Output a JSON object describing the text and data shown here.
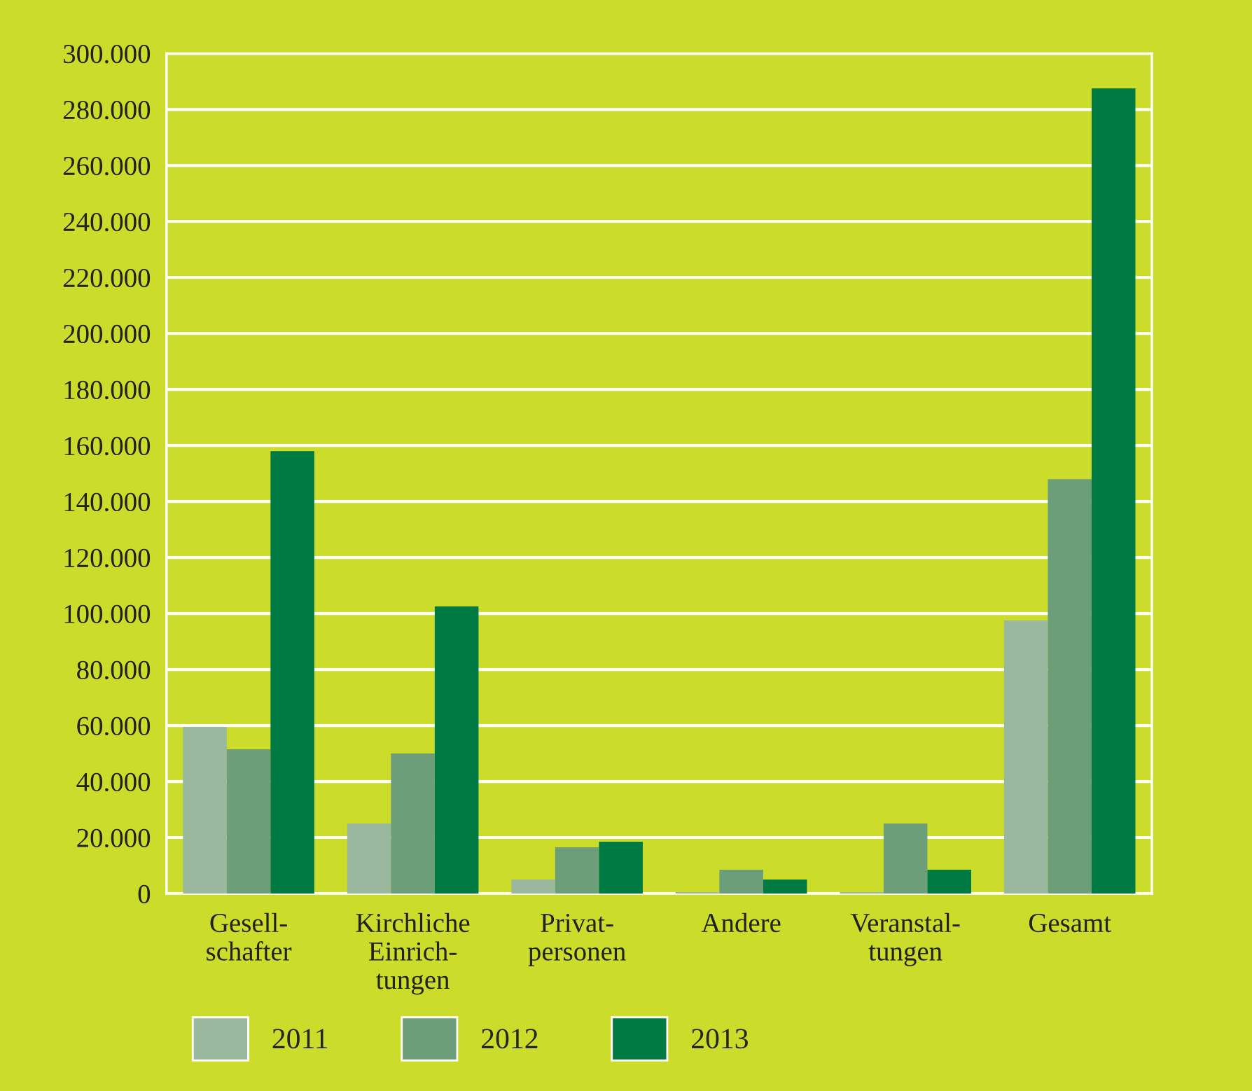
{
  "chart_data": {
    "type": "bar",
    "categories": [
      "Gesell-\nschafter",
      "Kirchliche\nEinrich-\ntungen",
      "Privat-\npersonen",
      "Andere",
      "Veranstal-\ntungen",
      "Gesamt"
    ],
    "series": [
      {
        "name": "2011",
        "color": "#9ab89e",
        "values": [
          59500,
          25000,
          5000,
          500,
          500,
          97500
        ]
      },
      {
        "name": "2012",
        "color": "#6c9e7a",
        "values": [
          51500,
          50000,
          16500,
          8500,
          25000,
          148000
        ]
      },
      {
        "name": "2013",
        "color": "#007a43",
        "values": [
          158000,
          102500,
          18500,
          5000,
          8500,
          287500
        ]
      }
    ],
    "ylim": [
      0,
      300000
    ],
    "yticks": [
      {
        "value": 0,
        "label": "0"
      },
      {
        "value": 20000,
        "label": "20.000"
      },
      {
        "value": 40000,
        "label": "40.000"
      },
      {
        "value": 60000,
        "label": "60.000"
      },
      {
        "value": 80000,
        "label": "80.000"
      },
      {
        "value": 100000,
        "label": "100.000"
      },
      {
        "value": 120000,
        "label": "120.000"
      },
      {
        "value": 140000,
        "label": "140.000"
      },
      {
        "value": 160000,
        "label": "160.000"
      },
      {
        "value": 180000,
        "label": "180.000"
      },
      {
        "value": 200000,
        "label": "200.000"
      },
      {
        "value": 220000,
        "label": "220.000"
      },
      {
        "value": 240000,
        "label": "240.000"
      },
      {
        "value": 260000,
        "label": "260.000"
      },
      {
        "value": 280000,
        "label": "280.000"
      },
      {
        "value": 300000,
        "label": "300.000"
      }
    ],
    "grid": "y",
    "legend": "bottom left"
  }
}
